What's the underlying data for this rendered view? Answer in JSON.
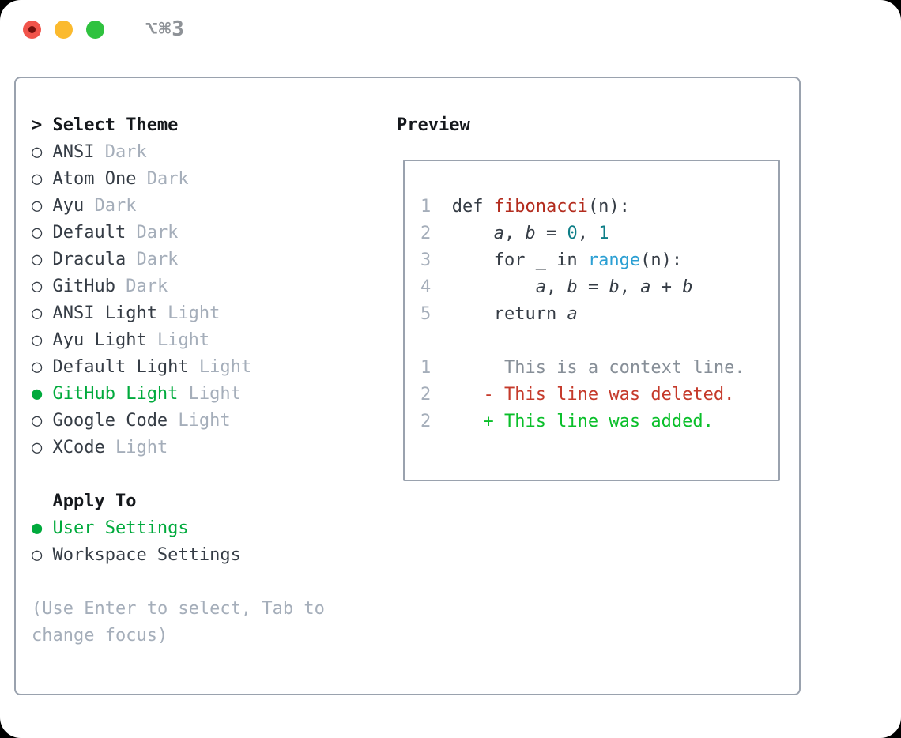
{
  "window": {
    "title": "⌥⌘3"
  },
  "markers": {
    "header": ">",
    "selected": "●",
    "unselected": "○"
  },
  "colors": {
    "accent-green": "#00aa3c",
    "added-green": "#0abf2a",
    "deleted-red": "#c53a2b",
    "function-red": "#b32b1d",
    "number-teal": "#0e7e87",
    "builtin-blue": "#2b9fd3",
    "muted-gray": "#a5aeba",
    "context-gray": "#878f98",
    "text-dark": "#353c45",
    "header-black": "#15181c",
    "border-gray": "#9aa2ae",
    "traffic-red": "#f1544b",
    "traffic-yellow": "#fbba2e",
    "traffic-green": "#2fc23f",
    "title-gray": "#8e9297"
  },
  "theme_list": {
    "header": "Select Theme",
    "items": [
      {
        "name": "ANSI",
        "variant": "Dark",
        "selected": false
      },
      {
        "name": "Atom One",
        "variant": "Dark",
        "selected": false
      },
      {
        "name": "Ayu",
        "variant": "Dark",
        "selected": false
      },
      {
        "name": "Default",
        "variant": "Dark",
        "selected": false
      },
      {
        "name": "Dracula",
        "variant": "Dark",
        "selected": false
      },
      {
        "name": "GitHub",
        "variant": "Dark",
        "selected": false
      },
      {
        "name": "ANSI Light",
        "variant": "Light",
        "selected": false
      },
      {
        "name": "Ayu Light",
        "variant": "Light",
        "selected": false
      },
      {
        "name": "Default Light",
        "variant": "Light",
        "selected": false
      },
      {
        "name": "GitHub Light",
        "variant": "Light",
        "selected": true
      },
      {
        "name": "Google Code",
        "variant": "Light",
        "selected": false
      },
      {
        "name": "XCode",
        "variant": "Light",
        "selected": false
      }
    ]
  },
  "apply_to": {
    "header": "Apply To",
    "items": [
      {
        "name": "User Settings",
        "selected": true
      },
      {
        "name": "Workspace Settings",
        "selected": false
      }
    ]
  },
  "hints": [
    "(Use Enter to select, Tab to",
    "change focus)"
  ],
  "preview": {
    "header": "Preview",
    "code_lines": [
      {
        "num": "1",
        "tokens": [
          {
            "t": "def ",
            "c": "plain"
          },
          {
            "t": "fibonacci",
            "c": "func"
          },
          {
            "t": "(n):",
            "c": "plain"
          }
        ]
      },
      {
        "num": "2",
        "tokens": [
          {
            "t": "    ",
            "c": "plain"
          },
          {
            "t": "a",
            "c": "var"
          },
          {
            "t": ", ",
            "c": "plain"
          },
          {
            "t": "b",
            "c": "var"
          },
          {
            "t": " = ",
            "c": "plain"
          },
          {
            "t": "0",
            "c": "num"
          },
          {
            "t": ", ",
            "c": "plain"
          },
          {
            "t": "1",
            "c": "num"
          }
        ]
      },
      {
        "num": "3",
        "tokens": [
          {
            "t": "    for _ in ",
            "c": "plain"
          },
          {
            "t": "range",
            "c": "builtin"
          },
          {
            "t": "(n):",
            "c": "plain"
          }
        ]
      },
      {
        "num": "4",
        "tokens": [
          {
            "t": "        ",
            "c": "plain"
          },
          {
            "t": "a",
            "c": "var"
          },
          {
            "t": ", ",
            "c": "plain"
          },
          {
            "t": "b",
            "c": "var"
          },
          {
            "t": " = ",
            "c": "plain"
          },
          {
            "t": "b",
            "c": "var"
          },
          {
            "t": ", ",
            "c": "plain"
          },
          {
            "t": "a",
            "c": "var"
          },
          {
            "t": " + ",
            "c": "plain"
          },
          {
            "t": "b",
            "c": "var"
          }
        ]
      },
      {
        "num": "5",
        "tokens": [
          {
            "t": "    return ",
            "c": "plain"
          },
          {
            "t": "a",
            "c": "var"
          }
        ]
      }
    ],
    "diff_lines": [
      {
        "num": "1",
        "tokens": [
          {
            "t": "     This is a context line.",
            "c": "ctx"
          }
        ]
      },
      {
        "num": "2",
        "tokens": [
          {
            "t": "   - This line was deleted.",
            "c": "del"
          }
        ]
      },
      {
        "num": "2",
        "tokens": [
          {
            "t": "   + This line was added.",
            "c": "add"
          }
        ]
      }
    ]
  }
}
